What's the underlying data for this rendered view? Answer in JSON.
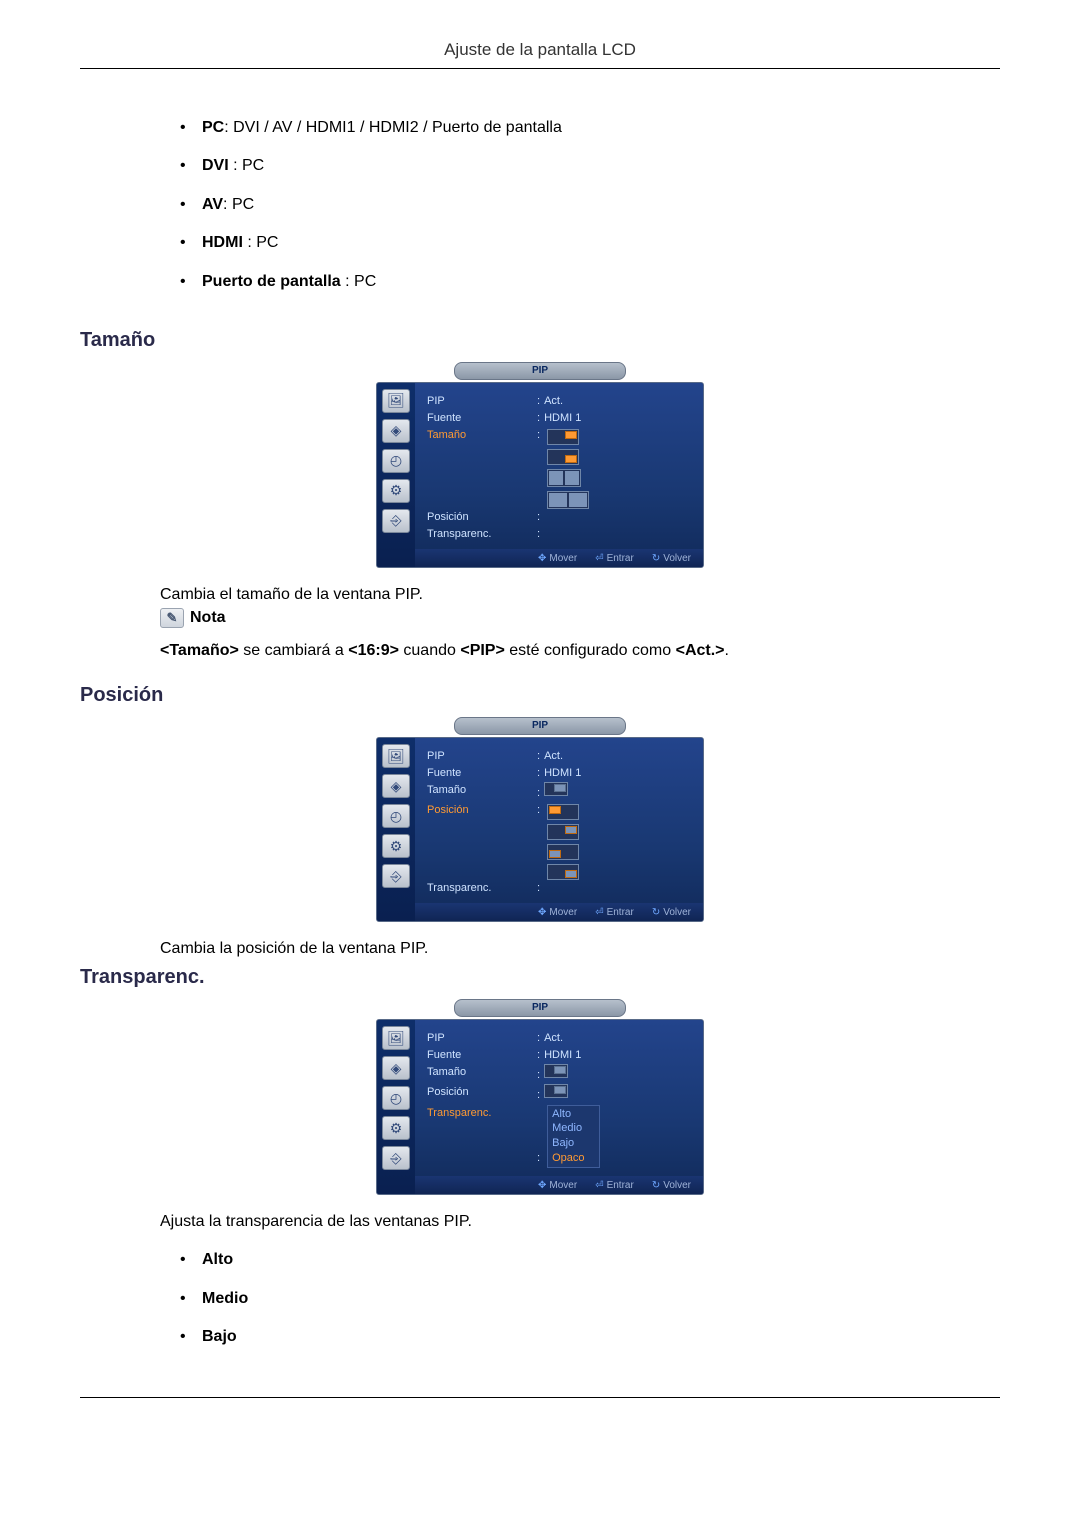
{
  "header": {
    "title": "Ajuste de la pantalla LCD"
  },
  "sources": {
    "items": [
      {
        "label_bold": "PC",
        "label_rest": ": DVI / AV / HDMI1 / HDMI2 / Puerto de pantalla"
      },
      {
        "label_bold": "DVI",
        "label_rest": " : PC"
      },
      {
        "label_bold": "AV",
        "label_rest": ": PC"
      },
      {
        "label_bold": "HDMI",
        "label_rest": " : PC"
      },
      {
        "label_bold": "Puerto de pantalla",
        "label_rest": " : PC"
      }
    ]
  },
  "sections": {
    "tamano": {
      "heading": "Tamaño",
      "desc": "Cambia el tamaño de la ventana PIP.",
      "note_label": "Nota",
      "note_text_pre": "<Tamaño>",
      "note_text_mid1": " se cambiará a ",
      "note_text_b2": "<16:9>",
      "note_text_mid2": " cuando ",
      "note_text_b3": "<PIP>",
      "note_text_mid3": " esté configurado como ",
      "note_text_b4": "<Act.>",
      "note_text_end": "."
    },
    "posicion": {
      "heading": "Posición",
      "desc": "Cambia la posición de la ventana PIP."
    },
    "transparenc": {
      "heading": "Transparenc.",
      "desc": "Ajusta la transparencia de las ventanas PIP.",
      "options": [
        "Alto",
        "Medio",
        "Bajo"
      ]
    }
  },
  "osd": {
    "title": "PIP",
    "labels": {
      "pip": "PIP",
      "fuente": "Fuente",
      "tamano": "Tamaño",
      "posicion": "Posición",
      "transparenc": "Transparenc."
    },
    "values": {
      "act": "Act.",
      "hdmi1": "HDMI 1"
    },
    "footer": {
      "mover": "Mover",
      "entrar": "Entrar",
      "volver": "Volver"
    },
    "trans_opts": [
      "Alto",
      "Medio",
      "Bajo",
      "Opaco"
    ],
    "colors": {
      "panel_bg": "#193872",
      "highlight": "#ff9a33",
      "text": "#cfe3ff"
    }
  }
}
